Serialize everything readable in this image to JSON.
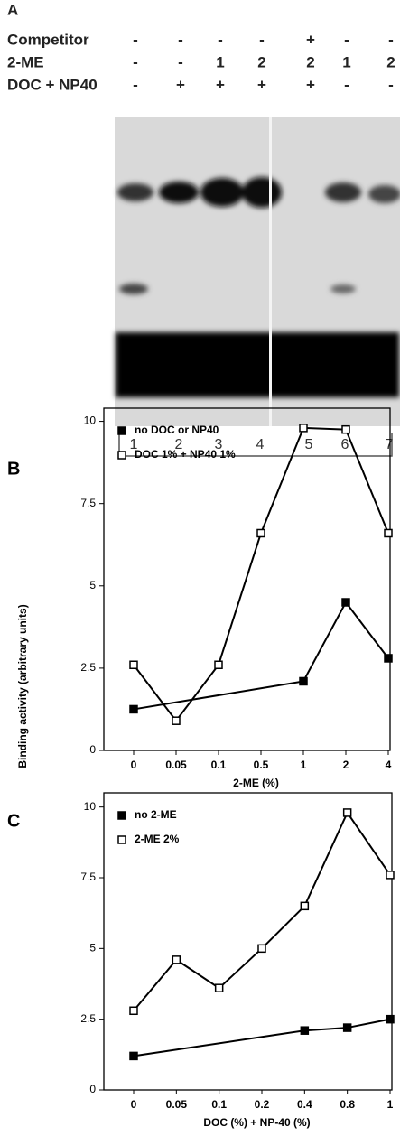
{
  "gel": {
    "panel": "A",
    "conditions": [
      {
        "label": "Competitor",
        "values": [
          "-",
          "-",
          "-",
          "-",
          "+",
          "-",
          "-"
        ]
      },
      {
        "label": "2-ME",
        "values": [
          "-",
          "-",
          "1",
          "2",
          "2",
          "1",
          "2"
        ]
      },
      {
        "label": "DOC + NP40",
        "values": [
          "-",
          "+",
          "+",
          "+",
          "+",
          "-",
          "-"
        ]
      }
    ],
    "lanes": [
      "1",
      "2",
      "3",
      "4",
      "5",
      "6",
      "7"
    ]
  },
  "chart_data": [
    {
      "type": "line",
      "panel": "B",
      "xlabel": "2-ME  (%)",
      "ylabel": "Binding activity (arbitrary units)",
      "categories": [
        "0",
        "0.05",
        "0.1",
        "0.5",
        "1",
        "2",
        "4"
      ],
      "series": [
        {
          "name": "no DOC or NP40",
          "marker": "filled",
          "color": "#000",
          "x": [
            "0",
            "1",
            "2",
            "4"
          ],
          "values": [
            1.25,
            2.1,
            4.5,
            2.8
          ]
        },
        {
          "name": "DOC 1% + NP40 1%",
          "marker": "open",
          "color": "#000",
          "x": [
            "0",
            "0.05",
            "0.1",
            "0.5",
            "1",
            "2",
            "4"
          ],
          "values": [
            2.6,
            0.9,
            2.6,
            6.6,
            9.8,
            9.75,
            6.6
          ]
        }
      ],
      "ylim": [
        0,
        10.4
      ],
      "yticks": [
        0,
        2.5,
        5,
        7.5,
        10
      ]
    },
    {
      "type": "line",
      "panel": "C",
      "xlabel": "DOC (%) + NP-40 (%)",
      "categories": [
        "0",
        "0.05",
        "0.1",
        "0.2",
        "0.4",
        "0.8",
        "1"
      ],
      "series": [
        {
          "name": "no 2-ME",
          "marker": "filled",
          "color": "#000",
          "x": [
            "0",
            "0.4",
            "0.8",
            "1"
          ],
          "values": [
            1.2,
            2.1,
            2.2,
            2.5
          ]
        },
        {
          "name": "2-ME 2%",
          "marker": "open",
          "color": "#000",
          "x": [
            "0",
            "0.05",
            "0.1",
            "0.2",
            "0.4",
            "0.8",
            "1"
          ],
          "values": [
            2.8,
            4.6,
            3.6,
            5.0,
            6.5,
            9.8,
            7.6
          ]
        }
      ],
      "ylim": [
        0,
        10.5
      ],
      "yticks": [
        0,
        2.5,
        5,
        7.5,
        10
      ]
    }
  ]
}
